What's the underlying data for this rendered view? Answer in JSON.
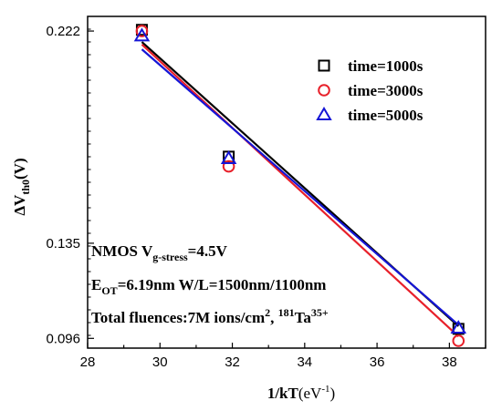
{
  "chart_data": {
    "type": "scatter",
    "xlabel": "1/kT",
    "xunit_open": "(eV",
    "xunit_exp": "-1",
    "xunit_close": ")",
    "ylabel_delta": "ΔV",
    "ylabel_sub": "th0",
    "ylabel_unit": "(V)",
    "xlim": [
      28,
      39
    ],
    "ylim": [
      0.092,
      0.228
    ],
    "xticks": [
      28,
      30,
      32,
      34,
      36,
      38
    ],
    "yticks": [
      0.222,
      0.135,
      0.096
    ],
    "ytick_labels": [
      "0.222",
      "0.135",
      "0.096"
    ],
    "series": [
      {
        "name": "time=1000s",
        "marker": "square",
        "color": "#000000",
        "x": [
          29.5,
          31.9,
          38.25
        ],
        "y": [
          0.2225,
          0.1705,
          0.0999
        ],
        "fit": {
          "x": [
            29.5,
            38.25
          ],
          "y": [
            0.2175,
            0.101
          ]
        }
      },
      {
        "name": "time=3000s",
        "marker": "circle",
        "color": "#e8202a",
        "x": [
          29.5,
          31.9,
          38.25
        ],
        "y": [
          0.222,
          0.1665,
          0.095
        ],
        "fit": {
          "x": [
            29.5,
            38.25
          ],
          "y": [
            0.2165,
            0.0968
          ]
        }
      },
      {
        "name": "time=5000s",
        "marker": "triangle",
        "color": "#1515d6",
        "x": [
          29.5,
          31.9,
          38.25
        ],
        "y": [
          0.22,
          0.1697,
          0.1002
        ],
        "fit": {
          "x": [
            29.5,
            38.25
          ],
          "y": [
            0.2145,
            0.1015
          ]
        }
      }
    ],
    "annotations": {
      "line1_prefix": "NMOS  V",
      "line1_sub": "g-stress",
      "line1_suffix": "=4.5V",
      "line2_prefix": "E",
      "line2_sub": "OT",
      "line2_suffix": "=6.19nm W/L=1500nm/1100nm",
      "line3_prefix": "Total fluences:7M ions/cm",
      "line3_sup1": "2",
      "line3_mid": ", ",
      "line3_sup2": "181",
      "line3_ion": "Ta",
      "line3_sup3": "35+"
    },
    "legend_position": "top-right",
    "grid": false
  }
}
